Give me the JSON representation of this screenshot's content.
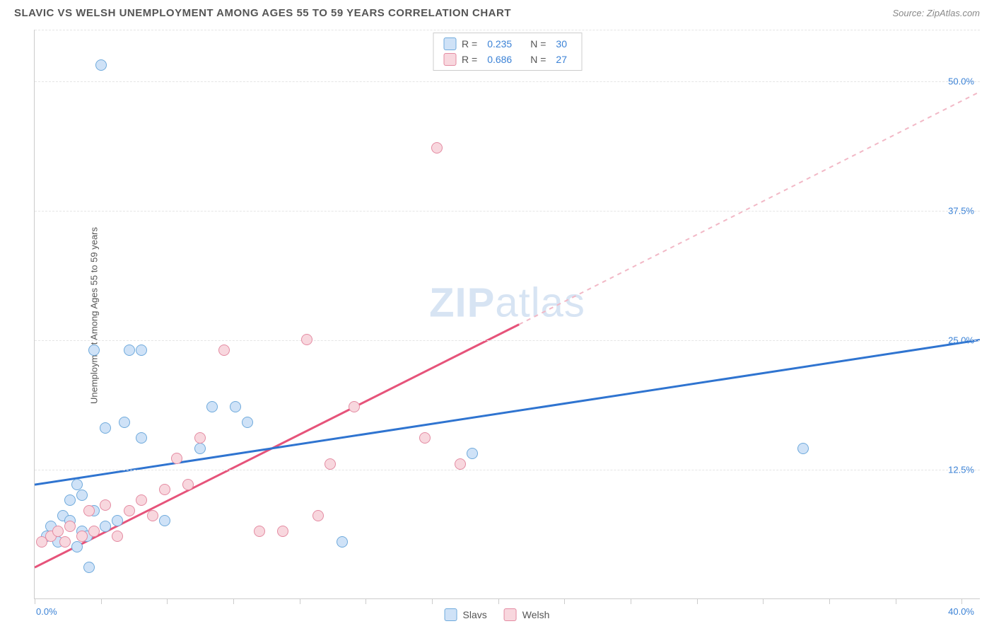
{
  "title": "SLAVIC VS WELSH UNEMPLOYMENT AMONG AGES 55 TO 59 YEARS CORRELATION CHART",
  "source_label": "Source: ZipAtlas.com",
  "ylabel": "Unemployment Among Ages 55 to 59 years",
  "watermark_bold": "ZIP",
  "watermark_rest": "atlas",
  "chart": {
    "type": "scatter",
    "xlim": [
      0,
      40
    ],
    "ylim": [
      0,
      55
    ],
    "x_tick_positions": [
      0,
      2.8,
      5.6,
      8.4,
      11.2,
      14.0,
      16.8,
      19.6,
      22.4,
      25.2,
      28.0,
      30.8,
      33.6,
      36.4,
      39.2
    ],
    "x_tick_labels": {
      "min": "0.0%",
      "max": "40.0%"
    },
    "y_gridlines": [
      12.5,
      25.0,
      37.5,
      50.0,
      55.0
    ],
    "y_tick_labels": [
      "12.5%",
      "25.0%",
      "37.5%",
      "50.0%"
    ],
    "background_color": "#ffffff",
    "grid_color": "#e5e5e5",
    "axis_color": "#cccccc",
    "point_radius": 8,
    "series": [
      {
        "name": "Slavs",
        "fill": "#cfe2f7",
        "stroke": "#6faadc",
        "r_label": "R =",
        "r_value": "0.235",
        "n_label": "N =",
        "n_value": "30",
        "trend": {
          "x1": 0,
          "y1": 11.0,
          "x2": 40,
          "y2": 25.0,
          "color": "#2f74d0",
          "width": 3,
          "dash": "none"
        },
        "points": [
          [
            0.5,
            6.0
          ],
          [
            0.7,
            7.0
          ],
          [
            1.0,
            5.5
          ],
          [
            1.2,
            8.0
          ],
          [
            1.5,
            7.5
          ],
          [
            1.5,
            9.5
          ],
          [
            1.8,
            5.0
          ],
          [
            2.0,
            6.5
          ],
          [
            2.0,
            10.0
          ],
          [
            2.3,
            3.0
          ],
          [
            2.5,
            8.5
          ],
          [
            2.5,
            24.0
          ],
          [
            2.8,
            51.5
          ],
          [
            3.0,
            7.0
          ],
          [
            3.0,
            16.5
          ],
          [
            3.5,
            7.5
          ],
          [
            3.8,
            17.0
          ],
          [
            4.0,
            24.0
          ],
          [
            4.5,
            24.0
          ],
          [
            4.5,
            15.5
          ],
          [
            5.5,
            7.5
          ],
          [
            7.0,
            14.5
          ],
          [
            7.5,
            18.5
          ],
          [
            8.5,
            18.5
          ],
          [
            9.0,
            17.0
          ],
          [
            13.0,
            5.5
          ],
          [
            18.5,
            14.0
          ],
          [
            32.5,
            14.5
          ],
          [
            1.8,
            11.0
          ],
          [
            2.2,
            6.0
          ]
        ]
      },
      {
        "name": "Welsh",
        "fill": "#f8d7de",
        "stroke": "#e48ba2",
        "r_label": "R =",
        "r_value": "0.686",
        "n_label": "N =",
        "n_value": "27",
        "trend_solid": {
          "x1": 0,
          "y1": 3.0,
          "x2": 20.5,
          "y2": 26.5,
          "color": "#e6537a",
          "width": 3
        },
        "trend_dash": {
          "x1": 20.5,
          "y1": 26.5,
          "x2": 40,
          "y2": 49.0,
          "color": "#f2b8c6",
          "width": 2
        },
        "points": [
          [
            0.3,
            5.5
          ],
          [
            0.7,
            6.0
          ],
          [
            1.0,
            6.5
          ],
          [
            1.3,
            5.5
          ],
          [
            1.5,
            7.0
          ],
          [
            2.0,
            6.0
          ],
          [
            2.3,
            8.5
          ],
          [
            2.5,
            6.5
          ],
          [
            3.0,
            9.0
          ],
          [
            3.5,
            6.0
          ],
          [
            4.0,
            8.5
          ],
          [
            4.5,
            9.5
          ],
          [
            5.0,
            8.0
          ],
          [
            5.5,
            10.5
          ],
          [
            6.0,
            13.5
          ],
          [
            6.5,
            11.0
          ],
          [
            7.0,
            15.5
          ],
          [
            8.0,
            24.0
          ],
          [
            9.5,
            6.5
          ],
          [
            10.5,
            6.5
          ],
          [
            11.5,
            25.0
          ],
          [
            12.0,
            8.0
          ],
          [
            12.5,
            13.0
          ],
          [
            13.5,
            18.5
          ],
          [
            16.5,
            15.5
          ],
          [
            17.0,
            43.5
          ],
          [
            18.0,
            13.0
          ]
        ]
      }
    ]
  },
  "legend_bottom": [
    {
      "label": "Slavs",
      "fill": "#cfe2f7",
      "stroke": "#6faadc"
    },
    {
      "label": "Welsh",
      "fill": "#f8d7de",
      "stroke": "#e48ba2"
    }
  ]
}
